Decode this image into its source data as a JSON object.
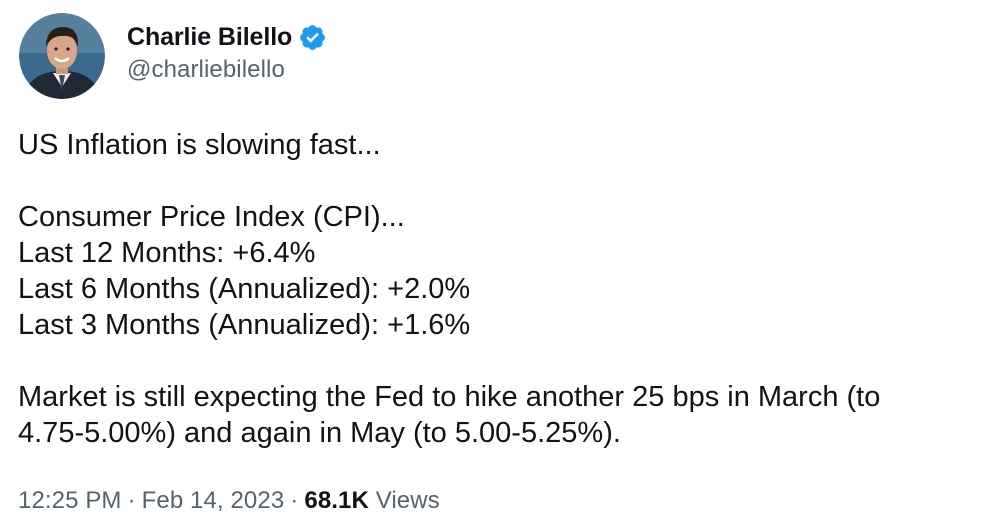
{
  "author": {
    "display_name": "Charlie Bilello",
    "handle": "@charliebilello",
    "verified": true,
    "avatar_icon": "profile-photo",
    "verified_icon": "verified-badge-icon",
    "verified_color": "#1d9bf0"
  },
  "tweet": {
    "line1": "US Inflation is slowing fast...",
    "line2": "Consumer Price Index (CPI)...",
    "line3": "Last 12 Months: +6.4%",
    "line4": "Last 6 Months (Annualized): +2.0%",
    "line5": "Last 3 Months (Annualized): +1.6%",
    "line6": "Market is still expecting the Fed to hike another 25 bps in March (to",
    "line7": "4.75-5.00%) and again in May (to 5.00-5.25%)."
  },
  "meta": {
    "time": "12:25 PM",
    "separator": "·",
    "date": "Feb 14, 2023",
    "views_count": "68.1K",
    "views_label": "Views"
  },
  "colors": {
    "text": "#0f1419",
    "secondary": "#536471",
    "background": "#ffffff"
  }
}
